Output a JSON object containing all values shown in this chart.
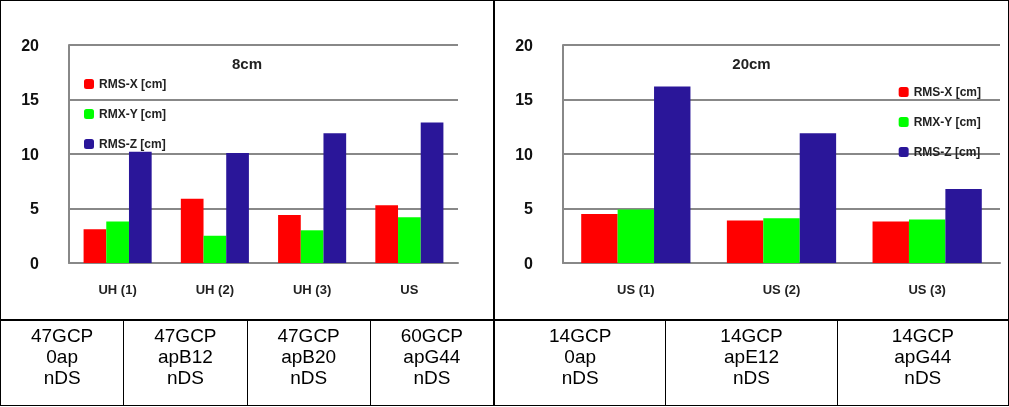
{
  "chart_data": [
    {
      "type": "bar",
      "title": "8cm",
      "categories": [
        "UH (1)",
        "UH (2)",
        "UH (3)",
        "US"
      ],
      "series": [
        {
          "name": "RMS-X [cm]",
          "color": "#ff0000",
          "values": [
            3.1,
            5.9,
            4.4,
            5.3
          ]
        },
        {
          "name": "RMX-Y [cm]",
          "color": "#00ff00",
          "values": [
            3.8,
            2.5,
            3.0,
            4.2
          ]
        },
        {
          "name": "RMS-Z [cm]",
          "color": "#2a1699",
          "values": [
            10.2,
            10.1,
            11.9,
            12.9
          ]
        }
      ],
      "ylim": [
        0,
        20
      ],
      "yticks": [
        0,
        5,
        10,
        15,
        20
      ],
      "grid": "y",
      "legend": "top left",
      "annotations": [
        "47GCP\n0ap\nnDS",
        "47GCP\napB12\nnDS",
        "47GCP\napB20\nnDS",
        "60GCP\napG44\nnDS"
      ]
    },
    {
      "type": "bar",
      "title": "20cm",
      "categories": [
        "US (1)",
        "US (2)",
        "US (3)"
      ],
      "series": [
        {
          "name": "RMS-X [cm]",
          "color": "#ff0000",
          "values": [
            4.5,
            3.9,
            3.8
          ]
        },
        {
          "name": "RMX-Y [cm]",
          "color": "#00ff00",
          "values": [
            4.9,
            4.1,
            4.0
          ]
        },
        {
          "name": "RMS-Z [cm]",
          "color": "#2a1699",
          "values": [
            16.2,
            11.9,
            6.8
          ]
        }
      ],
      "ylim": [
        0,
        20
      ],
      "yticks": [
        0,
        5,
        10,
        15,
        20
      ],
      "grid": "y",
      "legend": "top right",
      "annotations": [
        "14GCP\n0ap\nnDS",
        "14GCP\napE12\nnDS",
        "14GCP\napG44\nnDS"
      ]
    }
  ]
}
